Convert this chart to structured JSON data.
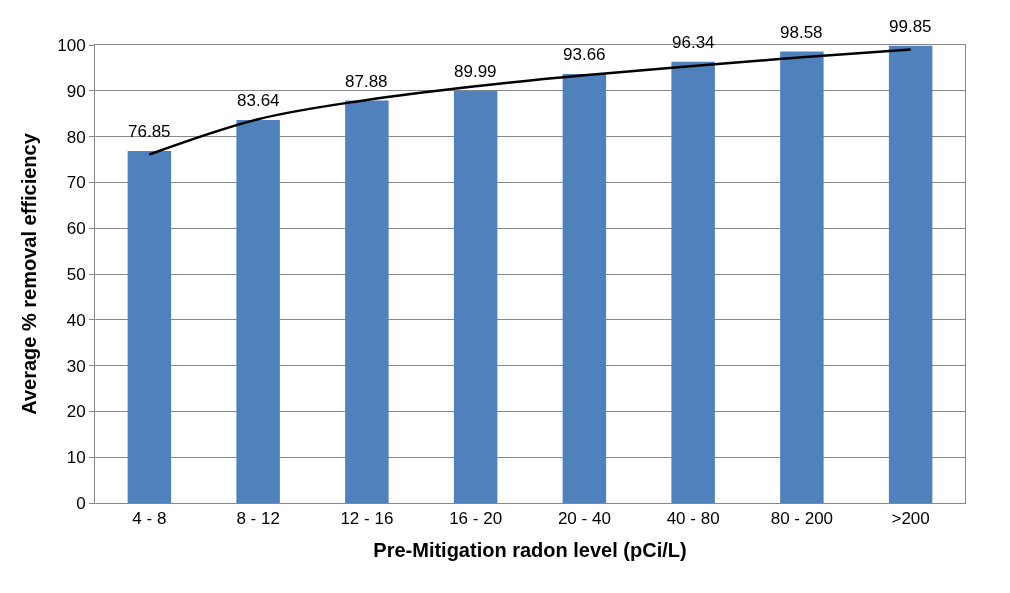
{
  "chart_data": {
    "type": "bar",
    "xlabel": "Pre-Mitigation radon level (pCi/L)",
    "ylabel": "Average % removal efficiency",
    "categories": [
      "4 - 8",
      "8 - 12",
      "12 - 16",
      "16 - 20",
      "20 - 40",
      "40 - 80",
      "80 - 200",
      ">200"
    ],
    "series": [
      {
        "color": "#4f81bd",
        "values": [
          76.85,
          83.64,
          87.88,
          89.99,
          93.66,
          96.34,
          98.58,
          99.85
        ],
        "value_labels": [
          "76.85",
          "83.64",
          "87.88",
          "89.99",
          "93.66",
          "96.34",
          "98.58",
          "99.85"
        ]
      },
      {
        "type": "line",
        "color": "#000000",
        "x": [
          "4 - 8",
          "8 - 12",
          "12 - 16",
          "16 - 20",
          "20 - 40",
          "40 - 80",
          "80 - 200",
          ">200"
        ],
        "values": [
          76.1,
          83.8,
          88.0,
          91.0,
          93.4,
          95.4,
          97.3,
          99.0
        ]
      }
    ],
    "ylim": [
      0,
      100
    ],
    "yticks": [
      0,
      10,
      20,
      30,
      40,
      50,
      60,
      70,
      80,
      90,
      100
    ],
    "grid": "y"
  }
}
